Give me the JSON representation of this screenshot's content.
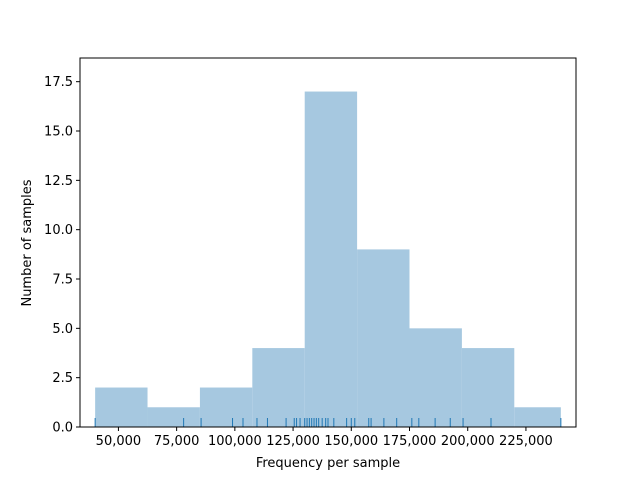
{
  "chart_data": {
    "type": "bar",
    "title": "",
    "xlabel": "Frequency per sample",
    "ylabel": "Number of samples",
    "xlim": [
      33500,
      246500
    ],
    "ylim": [
      0,
      18.7
    ],
    "grid": false,
    "bar_color": "#a6c8e0",
    "rug_color": "#1f77b4",
    "histogram": {
      "bin_edges": [
        40000,
        62500,
        85000,
        107500,
        130000,
        152500,
        175000,
        197500,
        220000,
        240000
      ],
      "counts": [
        2,
        1,
        2,
        4,
        17,
        9,
        5,
        4,
        1
      ]
    },
    "rug_values": [
      40000,
      78000,
      85500,
      99000,
      103500,
      109500,
      114000,
      122000,
      125500,
      126500,
      128000,
      130000,
      131000,
      132000,
      133000,
      134000,
      135000,
      136000,
      137500,
      139000,
      140000,
      142500,
      148000,
      150000,
      151500,
      157500,
      158500,
      164000,
      169500,
      176000,
      179000,
      186000,
      192500,
      198000,
      210000,
      240000
    ],
    "xticks": [
      {
        "value": 50000,
        "label": "50,000"
      },
      {
        "value": 75000,
        "label": "75,000"
      },
      {
        "value": 100000,
        "label": "100,000"
      },
      {
        "value": 125000,
        "label": "125,000"
      },
      {
        "value": 150000,
        "label": "150,000"
      },
      {
        "value": 175000,
        "label": "175,000"
      },
      {
        "value": 200000,
        "label": "200,000"
      },
      {
        "value": 225000,
        "label": "225,000"
      }
    ],
    "yticks": [
      {
        "value": 0,
        "label": "0.0"
      },
      {
        "value": 2.5,
        "label": "2.5"
      },
      {
        "value": 5,
        "label": "5.0"
      },
      {
        "value": 7.5,
        "label": "7.5"
      },
      {
        "value": 10,
        "label": "10.0"
      },
      {
        "value": 12.5,
        "label": "12.5"
      },
      {
        "value": 15,
        "label": "15.0"
      },
      {
        "value": 17.5,
        "label": "17.5"
      }
    ]
  }
}
